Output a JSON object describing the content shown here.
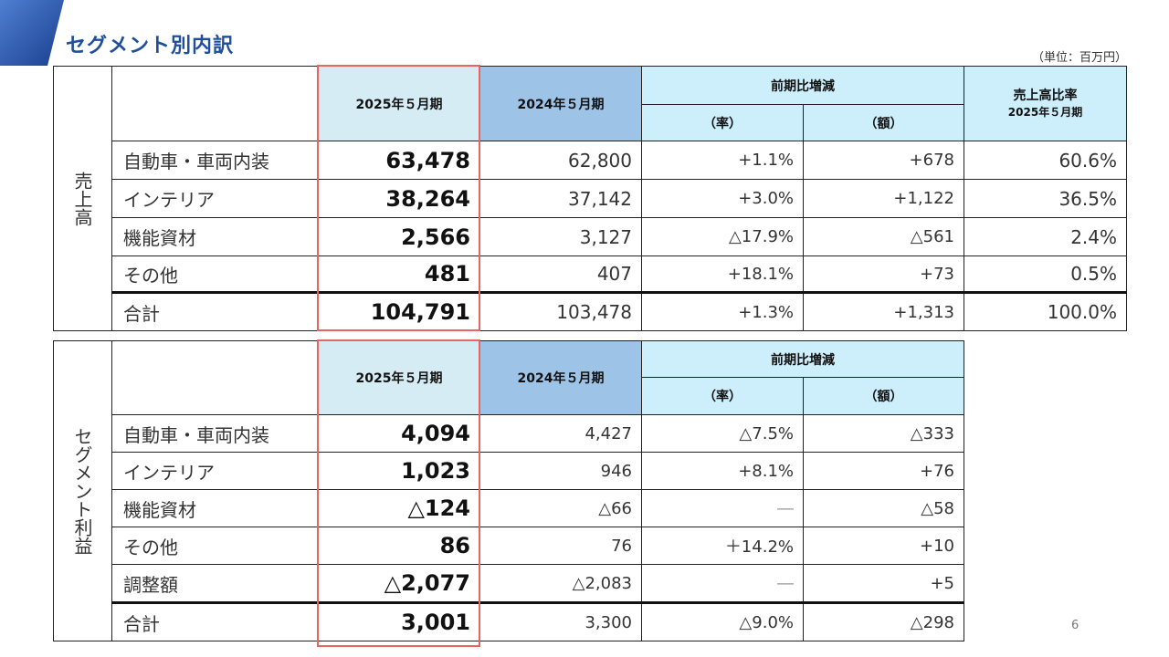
{
  "page": {
    "title": "セグメント別内訳",
    "unit": "（単位：百万円）",
    "page_number": "6"
  },
  "sales": {
    "section_label": "売上高",
    "headers": {
      "current": "2025年５月期",
      "previous": "2024年５月期",
      "change_group": "前期比増減",
      "rate": "（率）",
      "amount": "（額）",
      "ratio_title": "売上高比率",
      "ratio_sub": "2025年５月期"
    },
    "rows": [
      {
        "label": "自動車・車両内装",
        "current": "63,478",
        "previous": "62,800",
        "rate": "+1.1%",
        "amount": "+678",
        "ratio": "60.6%"
      },
      {
        "label": "インテリア",
        "current": "38,264",
        "previous": "37,142",
        "rate": "+3.0%",
        "amount": "+1,122",
        "ratio": "36.5%"
      },
      {
        "label": "機能資材",
        "current": "2,566",
        "previous": "3,127",
        "rate": "△17.9%",
        "amount": "△561",
        "ratio": "2.4%"
      },
      {
        "label": "その他",
        "current": "481",
        "previous": "407",
        "rate": "+18.1%",
        "amount": "+73",
        "ratio": "0.5%"
      },
      {
        "label": "合計",
        "current": "104,791",
        "previous": "103,478",
        "rate": "+1.3%",
        "amount": "+1,313",
        "ratio": "100.0%"
      }
    ]
  },
  "profit": {
    "section_label": "セグメント利益",
    "headers": {
      "current": "2025年５月期",
      "previous": "2024年５月期",
      "change_group": "前期比増減",
      "rate": "（率）",
      "amount": "（額）"
    },
    "rows": [
      {
        "label": "自動車・車両内装",
        "current": "4,094",
        "previous": "4,427",
        "rate": "△7.5%",
        "amount": "△333"
      },
      {
        "label": "インテリア",
        "current": "1,023",
        "previous": "946",
        "rate": "+8.1%",
        "amount": "+76"
      },
      {
        "label": "機能資材",
        "current": "△124",
        "previous": "△66",
        "rate": "―",
        "amount": "△58"
      },
      {
        "label": "その他",
        "current": "86",
        "previous": "76",
        "rate": "＋14.2%",
        "amount": "+10"
      },
      {
        "label": "調整額",
        "current": "△2,077",
        "previous": "△2,083",
        "rate": "―",
        "amount": "+5"
      },
      {
        "label": "合計",
        "current": "3,001",
        "previous": "3,300",
        "rate": "△9.0%",
        "amount": "△298"
      }
    ]
  },
  "colors": {
    "title": "#1f4e9c",
    "accent_dark": "#1a3f8f",
    "accent_light": "#4f7fd1",
    "current_header": "#d6ecf5",
    "previous_header": "#9dc3e6",
    "change_header": "#cdeefb",
    "highlight_frame": "#e8655f"
  }
}
